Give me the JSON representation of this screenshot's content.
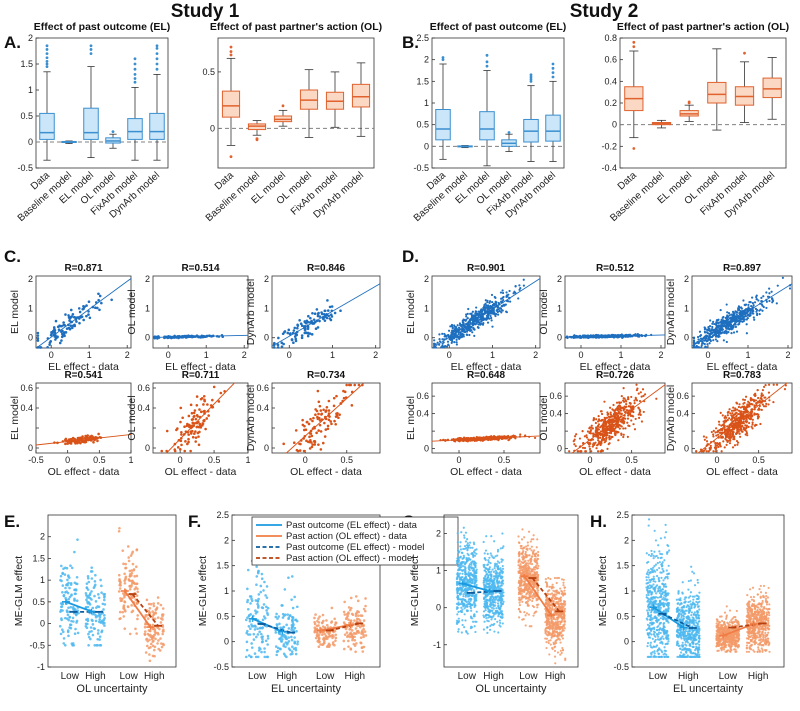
{
  "headers": {
    "study1": "Study 1",
    "study2": "Study 2"
  },
  "panel_letters": [
    "A.",
    "B.",
    "C.",
    "D.",
    "E.",
    "F.",
    "G.",
    "H."
  ],
  "colors": {
    "el_box_fill": "#cbe6f8",
    "el_box_edge": "#3a8fd0",
    "el_point": "#1f6fbf",
    "ol_box_fill": "#fbd8c4",
    "ol_box_edge": "#e0622e",
    "ol_point": "#d95319",
    "whisker": "#333333",
    "dash": "#808080",
    "strip_el": "#4db8f0",
    "strip_ol": "#f39a68",
    "line_el_data": "#1a9ae0",
    "line_ol_data": "#f07d45",
    "line_el_model": "#0d5d9e",
    "line_ol_model": "#b8400f"
  },
  "chart_data": [
    {
      "id": "A-EL",
      "panel": "A",
      "type": "box",
      "title": "Effect of past outcome (EL)",
      "categories": [
        "Data",
        "Baseline model",
        "EL model",
        "OL model",
        "FixArb model",
        "DynArb model"
      ],
      "ylim": [
        -0.5,
        2
      ],
      "yticks": [
        -0.5,
        0,
        0.5,
        1,
        1.5,
        2
      ],
      "zero_line": true,
      "boxes": [
        {
          "q1": 0.05,
          "median": 0.18,
          "q3": 0.55,
          "wlo": -0.35,
          "whi": 1.35,
          "outliers": [
            1.45,
            1.5,
            1.55,
            1.62,
            1.7,
            1.78,
            1.85
          ]
        },
        {
          "q1": -0.01,
          "median": 0.0,
          "q3": 0.01,
          "wlo": -0.03,
          "whi": 0.02,
          "outliers": []
        },
        {
          "q1": 0.05,
          "median": 0.18,
          "q3": 0.65,
          "wlo": -0.3,
          "whi": 1.45,
          "outliers": [
            1.7,
            1.78,
            1.85
          ]
        },
        {
          "q1": -0.02,
          "median": 0.02,
          "q3": 0.08,
          "wlo": -0.12,
          "whi": 0.15,
          "outliers": [
            0.2
          ]
        },
        {
          "q1": 0.05,
          "median": 0.2,
          "q3": 0.45,
          "wlo": -0.35,
          "whi": 1.05,
          "outliers": [
            1.15,
            1.22,
            1.3,
            1.4,
            1.5,
            1.6
          ]
        },
        {
          "q1": 0.05,
          "median": 0.2,
          "q3": 0.55,
          "wlo": -0.35,
          "whi": 1.3,
          "outliers": [
            1.4,
            1.5,
            1.6,
            1.7,
            1.8,
            1.85
          ]
        }
      ]
    },
    {
      "id": "A-OL",
      "panel": "A",
      "type": "box",
      "title": "Effect of past partner's action (OL)",
      "categories": [
        "Data",
        "Baseline model",
        "EL model",
        "OL model",
        "FixArb model",
        "DynArb model"
      ],
      "ylim": [
        -0.35,
        0.8
      ],
      "yticks": [
        0,
        0.5
      ],
      "zero_line": true,
      "boxes": [
        {
          "q1": 0.1,
          "median": 0.2,
          "q3": 0.33,
          "wlo": -0.15,
          "whi": 0.62,
          "outliers": [
            0.65,
            0.68,
            0.72,
            -0.25
          ]
        },
        {
          "q1": -0.01,
          "median": 0.02,
          "q3": 0.04,
          "wlo": -0.06,
          "whi": 0.07,
          "outliers": [
            -0.09,
            -0.1
          ]
        },
        {
          "q1": 0.06,
          "median": 0.08,
          "q3": 0.11,
          "wlo": 0.02,
          "whi": 0.16,
          "outliers": [
            0.2
          ]
        },
        {
          "q1": 0.17,
          "median": 0.25,
          "q3": 0.34,
          "wlo": -0.08,
          "whi": 0.52,
          "outliers": []
        },
        {
          "q1": 0.17,
          "median": 0.24,
          "q3": 0.32,
          "wlo": 0.01,
          "whi": 0.5,
          "outliers": []
        },
        {
          "q1": 0.19,
          "median": 0.28,
          "q3": 0.39,
          "wlo": -0.07,
          "whi": 0.58,
          "outliers": []
        }
      ]
    },
    {
      "id": "B-EL",
      "panel": "B",
      "type": "box",
      "title": "Effect of past outcome (EL)",
      "categories": [
        "Data",
        "Baseline model",
        "EL model",
        "OL model",
        "FixArb model",
        "DynArb model"
      ],
      "ylim": [
        -0.5,
        2.5
      ],
      "yticks": [
        -0.5,
        0,
        0.5,
        1,
        1.5,
        2,
        2.5
      ],
      "zero_line": true,
      "boxes": [
        {
          "q1": 0.15,
          "median": 0.4,
          "q3": 0.85,
          "wlo": -0.3,
          "whi": 1.9,
          "outliers": [
            2.0,
            2.05
          ]
        },
        {
          "q1": -0.01,
          "median": 0.0,
          "q3": 0.01,
          "wlo": -0.03,
          "whi": 0.02,
          "outliers": []
        },
        {
          "q1": 0.15,
          "median": 0.4,
          "q3": 0.8,
          "wlo": -0.45,
          "whi": 1.75,
          "outliers": [
            1.85,
            1.95,
            2.1
          ]
        },
        {
          "q1": 0.0,
          "median": 0.07,
          "q3": 0.15,
          "wlo": -0.12,
          "whi": 0.28,
          "outliers": [
            0.32
          ]
        },
        {
          "q1": 0.1,
          "median": 0.35,
          "q3": 0.62,
          "wlo": -0.35,
          "whi": 1.4,
          "outliers": [
            1.5,
            1.55,
            1.6,
            1.65
          ]
        },
        {
          "q1": 0.12,
          "median": 0.35,
          "q3": 0.72,
          "wlo": -0.35,
          "whi": 1.5,
          "outliers": [
            1.6,
            1.7,
            1.8,
            1.9
          ]
        }
      ]
    },
    {
      "id": "B-OL",
      "panel": "B",
      "type": "box",
      "title": "Effect of past partner's action (OL)",
      "categories": [
        "Data",
        "Baseline model",
        "EL model",
        "OL model",
        "FixArb model",
        "DynArb model"
      ],
      "ylim": [
        -0.4,
        0.8
      ],
      "yticks": [
        -0.4,
        -0.2,
        0,
        0.2,
        0.4,
        0.6,
        0.8
      ],
      "zero_line": true,
      "boxes": [
        {
          "q1": 0.13,
          "median": 0.24,
          "q3": 0.35,
          "wlo": -0.12,
          "whi": 0.68,
          "outliers": [
            0.72,
            0.76,
            -0.22
          ]
        },
        {
          "q1": 0.0,
          "median": 0.01,
          "q3": 0.02,
          "wlo": -0.03,
          "whi": 0.04,
          "outliers": []
        },
        {
          "q1": 0.08,
          "median": 0.1,
          "q3": 0.13,
          "wlo": 0.03,
          "whi": 0.18,
          "outliers": [
            0.2,
            0.21
          ]
        },
        {
          "q1": 0.2,
          "median": 0.28,
          "q3": 0.39,
          "wlo": -0.05,
          "whi": 0.7,
          "outliers": []
        },
        {
          "q1": 0.18,
          "median": 0.26,
          "q3": 0.35,
          "wlo": 0.02,
          "whi": 0.58,
          "outliers": [
            0.66
          ]
        },
        {
          "q1": 0.25,
          "median": 0.33,
          "q3": 0.43,
          "wlo": 0.05,
          "whi": 0.62,
          "outliers": []
        }
      ]
    },
    {
      "id": "C1",
      "panel": "C",
      "type": "scatter",
      "title": "R=0.871",
      "xlabel": "EL effect - data",
      "ylabel": "EL model",
      "xlim": [
        -0.4,
        2.1
      ],
      "ylim": [
        -0.35,
        2.1
      ],
      "xticks": [
        0,
        1,
        2
      ],
      "yticks": [
        0,
        1,
        2
      ],
      "color": "el",
      "n": 110,
      "r": 0.871,
      "slope": 0.95,
      "intercept": 0.02,
      "xmu": 0.45,
      "xsd": 0.42
    },
    {
      "id": "C2",
      "panel": "C",
      "type": "scatter",
      "title": "R=0.514",
      "xlabel": "EL effect - data",
      "ylabel": "OL model",
      "xlim": [
        -0.4,
        2.1
      ],
      "ylim": [
        -0.35,
        2.1
      ],
      "xticks": [
        0,
        1,
        2
      ],
      "yticks": [
        0,
        1,
        2
      ],
      "color": "el",
      "n": 110,
      "r": 0.514,
      "slope": 0.03,
      "intercept": 0.02,
      "xmu": 0.45,
      "xsd": 0.42
    },
    {
      "id": "C3",
      "panel": "C",
      "type": "scatter",
      "title": "R=0.846",
      "xlabel": "",
      "ylabel": "DynArb model",
      "xlim": [
        -0.4,
        2.1
      ],
      "ylim": [
        -0.35,
        2.1
      ],
      "xticks": [
        0,
        1,
        2
      ],
      "yticks": [
        0,
        1,
        2
      ],
      "color": "el",
      "n": 110,
      "r": 0.846,
      "slope": 0.85,
      "intercept": 0.05,
      "xmu": 0.45,
      "xsd": 0.42
    },
    {
      "id": "C4",
      "panel": "C",
      "type": "scatter",
      "title": "R=0.541",
      "xlabel": "OL effect - data",
      "ylabel": "EL model",
      "xlim": [
        -0.5,
        1
      ],
      "ylim": [
        -0.05,
        0.65
      ],
      "xticks": [
        -0.5,
        0,
        0.5,
        1
      ],
      "yticks": [
        0,
        0.2,
        0.4,
        0.6
      ],
      "color": "ol",
      "n": 110,
      "r": 0.541,
      "slope": 0.07,
      "intercept": 0.065,
      "xmu": 0.22,
      "xsd": 0.17
    },
    {
      "id": "C5",
      "panel": "C",
      "type": "scatter",
      "title": "R=0.711",
      "xlabel": "OL effect - data",
      "ylabel": "OL model",
      "xlim": [
        -0.4,
        1
      ],
      "ylim": [
        -0.05,
        0.65
      ],
      "xticks": [
        0,
        0.5,
        1
      ],
      "yticks": [
        0,
        0.2,
        0.4,
        0.6
      ],
      "color": "ol",
      "n": 110,
      "r": 0.711,
      "slope": 0.7,
      "intercept": 0.09,
      "xmu": 0.22,
      "xsd": 0.17
    },
    {
      "id": "C6",
      "panel": "C",
      "type": "scatter",
      "title": "R=0.734",
      "xlabel": "OL effect - data",
      "ylabel": "DynArb model",
      "xlim": [
        -0.4,
        0.9
      ],
      "ylim": [
        -0.05,
        0.65
      ],
      "xticks": [
        0,
        0.5
      ],
      "yticks": [
        0,
        0.2,
        0.4,
        0.6
      ],
      "color": "ol",
      "n": 110,
      "r": 0.734,
      "slope": 0.75,
      "intercept": 0.12,
      "xmu": 0.22,
      "xsd": 0.17
    },
    {
      "id": "D1",
      "panel": "D",
      "type": "scatter",
      "title": "R=0.901",
      "xlabel": "EL effect - data",
      "ylabel": "EL model",
      "xlim": [
        -0.4,
        2.1
      ],
      "ylim": [
        -0.35,
        2.1
      ],
      "xticks": [
        0,
        1,
        2
      ],
      "yticks": [
        0,
        1,
        2
      ],
      "color": "el",
      "n": 520,
      "r": 0.901,
      "slope": 0.95,
      "intercept": 0.02,
      "xmu": 0.55,
      "xsd": 0.45
    },
    {
      "id": "D2",
      "panel": "D",
      "type": "scatter",
      "title": "R=0.512",
      "xlabel": "EL effect - data",
      "ylabel": "OL model",
      "xlim": [
        -0.4,
        2.1
      ],
      "ylim": [
        -0.35,
        2.1
      ],
      "xticks": [
        0,
        1,
        2
      ],
      "yticks": [
        0,
        1,
        2
      ],
      "color": "el",
      "n": 520,
      "r": 0.512,
      "slope": 0.03,
      "intercept": 0.03,
      "xmu": 0.55,
      "xsd": 0.45
    },
    {
      "id": "D3",
      "panel": "D",
      "type": "scatter",
      "title": "R=0.897",
      "xlabel": "EL effect - data",
      "ylabel": "DynArb model",
      "xlim": [
        -0.4,
        2.1
      ],
      "ylim": [
        -0.35,
        2.1
      ],
      "xticks": [
        0,
        1,
        2
      ],
      "yticks": [
        0,
        1,
        2
      ],
      "color": "el",
      "n": 520,
      "r": 0.897,
      "slope": 0.85,
      "intercept": 0.05,
      "xmu": 0.55,
      "xsd": 0.45
    },
    {
      "id": "D4",
      "panel": "D",
      "type": "scatter",
      "title": "R=0.648",
      "xlabel": "OL effect - data",
      "ylabel": "EL model",
      "xlim": [
        -0.3,
        0.9
      ],
      "ylim": [
        -0.05,
        0.75
      ],
      "xticks": [
        0,
        0.5
      ],
      "yticks": [
        0,
        0.2,
        0.4,
        0.6
      ],
      "color": "ol",
      "n": 520,
      "r": 0.648,
      "slope": 0.05,
      "intercept": 0.1,
      "xmu": 0.25,
      "xsd": 0.17
    },
    {
      "id": "D5",
      "panel": "D",
      "type": "scatter",
      "title": "R=0.726",
      "xlabel": "OL effect - data",
      "ylabel": "OL model",
      "xlim": [
        -0.3,
        0.9
      ],
      "ylim": [
        -0.05,
        0.75
      ],
      "xticks": [
        0,
        0.5
      ],
      "yticks": [
        0,
        0.2,
        0.4,
        0.6
      ],
      "color": "ol",
      "n": 520,
      "r": 0.726,
      "slope": 0.7,
      "intercept": 0.1,
      "xmu": 0.25,
      "xsd": 0.17
    },
    {
      "id": "D6",
      "panel": "D",
      "type": "scatter",
      "title": "R=0.783",
      "xlabel": "OL effect - data",
      "ylabel": "DynArb model",
      "xlim": [
        -0.3,
        0.9
      ],
      "ylim": [
        -0.05,
        0.75
      ],
      "xticks": [
        0,
        0.5
      ],
      "yticks": [
        0,
        0.2,
        0.4,
        0.6
      ],
      "color": "ol",
      "n": 520,
      "r": 0.783,
      "slope": 0.75,
      "intercept": 0.12,
      "xmu": 0.25,
      "xsd": 0.17
    },
    {
      "id": "E",
      "panel": "E",
      "type": "strip",
      "ylabel": "ME-GLM effect",
      "xlabel": "OL uncertainty",
      "ylim": [
        -1,
        2.5
      ],
      "yticks": [
        -1,
        -0.5,
        0,
        0.5,
        1,
        1.5,
        2
      ],
      "categories": [
        "Low",
        "High",
        "Low",
        "High"
      ],
      "groups": [
        {
          "series": "el",
          "data_mean": 0.5,
          "model_mean": 0.27,
          "sd": 0.5,
          "n": 115,
          "min": -0.5,
          "max": 2.2
        },
        {
          "series": "el",
          "data_mean": 0.28,
          "model_mean": 0.27,
          "sd": 0.45,
          "n": 115,
          "min": -0.5,
          "max": 1.7
        },
        {
          "series": "ol",
          "data_mean": 0.75,
          "model_mean": 0.68,
          "sd": 0.48,
          "n": 115,
          "min": -0.3,
          "max": 2.2
        },
        {
          "series": "ol",
          "data_mean": -0.08,
          "model_mean": -0.05,
          "sd": 0.35,
          "n": 115,
          "min": -1.0,
          "max": 0.6
        }
      ]
    },
    {
      "id": "F",
      "panel": "F",
      "type": "strip",
      "ylabel": "ME-GLM effect",
      "xlabel": "EL uncertainty",
      "ylim": [
        -0.5,
        2.5
      ],
      "yticks": [
        -0.5,
        0,
        0.5,
        1,
        1.5,
        2,
        2.5
      ],
      "categories": [
        "Low",
        "High",
        "Low",
        "High"
      ],
      "legend": [
        "Past outcome (EL effect) - data",
        "Past action (OL effect) - data",
        "Past outcome (EL effect) - model",
        "Past action (OL effect) - model"
      ],
      "groups": [
        {
          "series": "el",
          "data_mean": 0.45,
          "model_mean": 0.35,
          "sd": 0.5,
          "n": 115,
          "min": -0.3,
          "max": 2.5
        },
        {
          "series": "el",
          "data_mean": 0.2,
          "model_mean": 0.18,
          "sd": 0.3,
          "n": 115,
          "min": -0.3,
          "max": 1.3
        },
        {
          "series": "ol",
          "data_mean": 0.22,
          "model_mean": 0.22,
          "sd": 0.15,
          "n": 115,
          "min": -0.1,
          "max": 0.7
        },
        {
          "series": "ol",
          "data_mean": 0.33,
          "model_mean": 0.36,
          "sd": 0.25,
          "n": 115,
          "min": -0.2,
          "max": 1.0
        }
      ]
    },
    {
      "id": "G",
      "panel": "G",
      "type": "strip",
      "ylabel": "ME-GLM effect",
      "xlabel": "OL uncertainty",
      "ylim": [
        -1.6,
        2.5
      ],
      "yticks": [
        -1,
        0,
        1,
        2
      ],
      "categories": [
        "Low",
        "High",
        "Low",
        "High"
      ],
      "groups": [
        {
          "series": "el",
          "data_mean": 0.65,
          "model_mean": 0.4,
          "sd": 0.5,
          "n": 500,
          "min": -0.7,
          "max": 2.3
        },
        {
          "series": "el",
          "data_mean": 0.45,
          "model_mean": 0.45,
          "sd": 0.45,
          "n": 500,
          "min": -0.8,
          "max": 2.0
        },
        {
          "series": "ol",
          "data_mean": 0.85,
          "model_mean": 0.8,
          "sd": 0.5,
          "n": 500,
          "min": -0.5,
          "max": 2.2
        },
        {
          "series": "ol",
          "data_mean": -0.2,
          "model_mean": -0.1,
          "sd": 0.4,
          "n": 500,
          "min": -1.5,
          "max": 0.8
        }
      ]
    },
    {
      "id": "H",
      "panel": "H",
      "type": "strip",
      "ylabel": "ME-GLM effect",
      "xlabel": "EL uncertainty",
      "ylim": [
        -0.5,
        2.5
      ],
      "yticks": [
        -0.5,
        0,
        0.5,
        1,
        1.5,
        2,
        2.5
      ],
      "categories": [
        "Low",
        "High",
        "Low",
        "High"
      ],
      "groups": [
        {
          "series": "el",
          "data_mean": 0.68,
          "model_mean": 0.55,
          "sd": 0.55,
          "n": 500,
          "min": -0.3,
          "max": 2.5
        },
        {
          "series": "el",
          "data_mean": 0.28,
          "model_mean": 0.27,
          "sd": 0.35,
          "n": 500,
          "min": -0.3,
          "max": 1.5
        },
        {
          "series": "ol",
          "data_mean": 0.12,
          "model_mean": 0.28,
          "sd": 0.15,
          "n": 500,
          "min": -0.2,
          "max": 0.7
        },
        {
          "series": "ol",
          "data_mean": 0.35,
          "model_mean": 0.36,
          "sd": 0.25,
          "n": 500,
          "min": -0.2,
          "max": 1.1
        }
      ]
    }
  ]
}
